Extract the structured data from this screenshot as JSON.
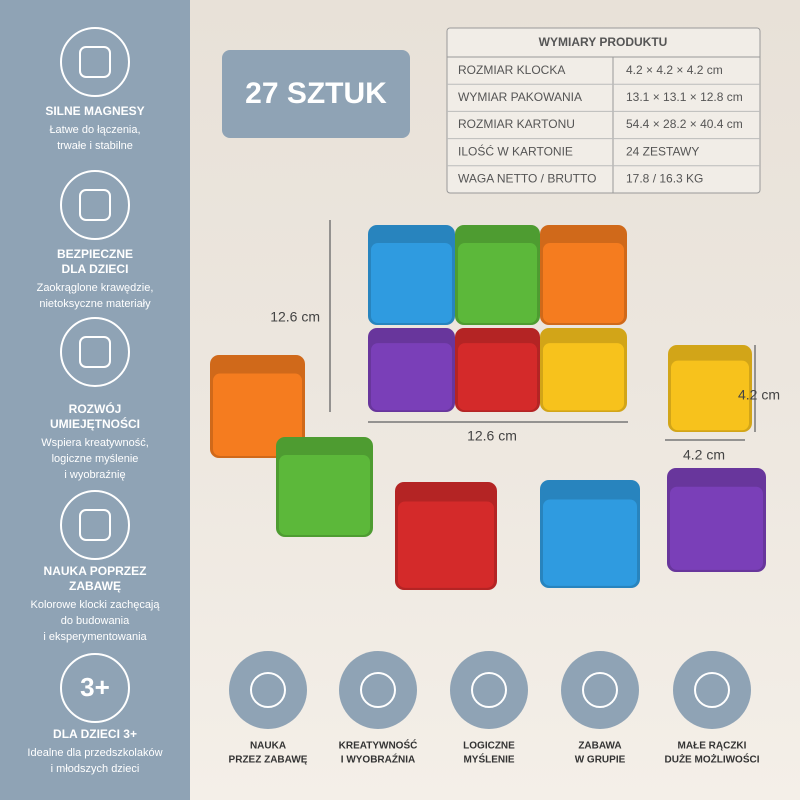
{
  "sidebar": {
    "features": [
      {
        "icon_text": null,
        "title_lines": [
          "SILNE MAGNESY"
        ],
        "desc_lines": [
          "Łatwe do łączenia,",
          "trwałe i stabilne"
        ]
      },
      {
        "icon_text": null,
        "title_lines": [
          "BEZPIECZNE",
          "DLA DZIECI"
        ],
        "desc_lines": [
          "Zaokrąglone krawędzie,",
          "nietoksyczne materiały"
        ]
      },
      {
        "icon_text": null,
        "title_lines": [
          "ROZWÓJ",
          "UMIEJĘTNOŚCI"
        ],
        "desc_lines": [
          "Wspiera kreatywność,",
          "logiczne myślenie",
          "i wyobraźnię"
        ]
      },
      {
        "icon_text": null,
        "title_lines": [
          "NAUKA POPRZEZ",
          "ZABAWĘ"
        ],
        "desc_lines": [
          "Kolorowe klocki zachęcają",
          "do budowania",
          "i eksperymentowania"
        ]
      },
      {
        "icon_text": "3+",
        "title_lines": [
          "DLA DZIECI 3+"
        ],
        "desc_lines": [
          "Idealne dla przedszkolaków",
          "i młodszych dzieci"
        ]
      }
    ]
  },
  "badge": "27 SZTUK",
  "table": {
    "title": "WYMIARY PRODUKTU",
    "rows": [
      [
        "ROZMIAR KLOCKA",
        "4.2 × 4.2 × 4.2 cm"
      ],
      [
        "WYMIAR PAKOWANIA",
        "13.1 × 13.1 × 12.8 cm"
      ],
      [
        "ROZMIAR KARTONU",
        "54.4 × 28.2 × 40.4 cm"
      ],
      [
        "ILOŚĆ W KARTONIE",
        "24 ZESTAWY"
      ],
      [
        "WAGA NETTO / BRUTTO",
        "17.8 / 16.3 KG"
      ]
    ]
  },
  "dimensions": {
    "stack_height": "12.6 cm",
    "stack_width": "12.6 cm",
    "cube_height": "4.2 cm",
    "cube_width": "4.2 cm"
  },
  "bottom_icons": [
    {
      "label_lines": [
        "NAUKA",
        "PRZEZ ZABAWĘ"
      ]
    },
    {
      "label_lines": [
        "KREATYWNOŚĆ",
        "I WYOBRAŹNIA"
      ]
    },
    {
      "label_lines": [
        "LOGICZNE",
        "MYŚLENIE"
      ]
    },
    {
      "label_lines": [
        "ZABAWA",
        "W GRUPIE"
      ]
    },
    {
      "label_lines": [
        "MAŁE RĄCZKI",
        "DUŻE MOŻLIWOŚCI"
      ]
    }
  ]
}
